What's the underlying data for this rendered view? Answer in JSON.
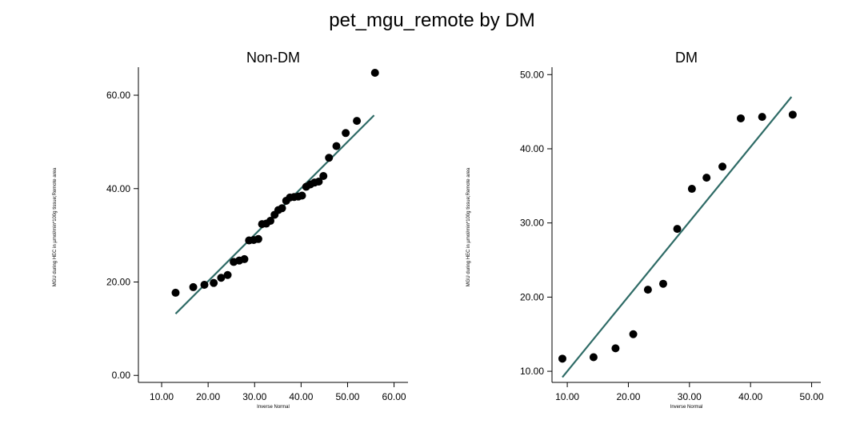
{
  "title": "pet_mgu_remote by DM",
  "colors": {
    "points": "#000000",
    "fit_line": "#2e6b66",
    "axis": "#000000"
  },
  "chart_data": [
    {
      "type": "scatter",
      "title": "Non-DM",
      "xlabel": "Inverse Normal",
      "ylabel": "MGU during HEC in µmol/min*100g tissue;Remote area",
      "xlim": [
        5.0,
        63.0
      ],
      "ylim": [
        -1.5,
        66.0
      ],
      "xticks": [
        "10.00",
        "20.00",
        "30.00",
        "40.00",
        "50.00",
        "60.00"
      ],
      "yticks": [
        "0.00",
        "20.00",
        "40.00",
        "60.00"
      ],
      "grid": false,
      "points": [
        [
          13.0,
          17.7
        ],
        [
          16.8,
          18.9
        ],
        [
          19.2,
          19.4
        ],
        [
          21.2,
          19.8
        ],
        [
          22.8,
          20.9
        ],
        [
          24.2,
          21.5
        ],
        [
          25.5,
          24.3
        ],
        [
          26.7,
          24.6
        ],
        [
          27.8,
          24.9
        ],
        [
          28.8,
          28.9
        ],
        [
          29.8,
          29.0
        ],
        [
          30.8,
          29.2
        ],
        [
          31.6,
          32.4
        ],
        [
          32.5,
          32.5
        ],
        [
          33.4,
          33.1
        ],
        [
          34.3,
          34.4
        ],
        [
          35.1,
          35.4
        ],
        [
          35.9,
          35.8
        ],
        [
          36.8,
          37.4
        ],
        [
          37.6,
          38.1
        ],
        [
          38.5,
          38.2
        ],
        [
          39.4,
          38.3
        ],
        [
          40.2,
          38.5
        ],
        [
          41.1,
          40.4
        ],
        [
          42.0,
          40.9
        ],
        [
          42.9,
          41.3
        ],
        [
          43.8,
          41.5
        ],
        [
          44.8,
          42.7
        ],
        [
          46.0,
          46.6
        ],
        [
          47.6,
          49.1
        ],
        [
          49.6,
          51.9
        ],
        [
          52.0,
          54.5
        ],
        [
          55.9,
          64.8
        ]
      ],
      "fit_line": [
        [
          13.0,
          13.2
        ],
        [
          55.7,
          55.7
        ]
      ]
    },
    {
      "type": "scatter",
      "title": "DM",
      "xlabel": "Inverse Normal",
      "ylabel": "MGU during HEC in µmol/min*100g tissue;Remote area",
      "xlim": [
        7.5,
        51.5
      ],
      "ylim": [
        8.5,
        51.0
      ],
      "xticks": [
        "10.00",
        "20.00",
        "30.00",
        "40.00",
        "50.00"
      ],
      "yticks": [
        "10.00",
        "20.00",
        "30.00",
        "40.00",
        "50.00"
      ],
      "grid": false,
      "points": [
        [
          9.2,
          11.7
        ],
        [
          14.3,
          11.9
        ],
        [
          17.9,
          13.1
        ],
        [
          20.8,
          15.0
        ],
        [
          23.2,
          21.0
        ],
        [
          25.7,
          21.8
        ],
        [
          28.0,
          29.2
        ],
        [
          30.4,
          34.6
        ],
        [
          32.8,
          36.1
        ],
        [
          35.4,
          37.6
        ],
        [
          38.4,
          44.1
        ],
        [
          41.9,
          44.3
        ],
        [
          46.9,
          44.6
        ]
      ],
      "fit_line": [
        [
          9.2,
          9.2
        ],
        [
          46.7,
          47.0
        ]
      ]
    }
  ]
}
